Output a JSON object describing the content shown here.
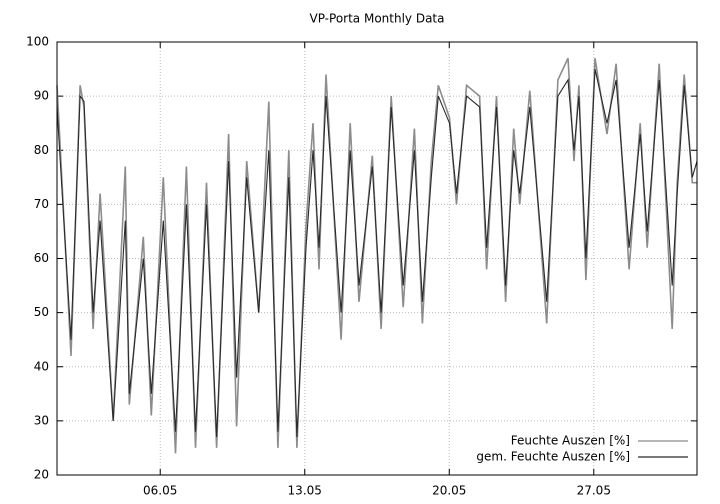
{
  "chart_data": {
    "type": "line",
    "title": "VP-Porta Monthly Data",
    "x": [
      1.0,
      1.68,
      2.12,
      2.31,
      2.75,
      3.09,
      3.72,
      4.31,
      4.5,
      5.18,
      5.57,
      6.15,
      6.74,
      7.27,
      7.71,
      8.24,
      8.73,
      9.31,
      9.7,
      10.19,
      10.77,
      11.26,
      11.7,
      12.23,
      12.62,
      13.06,
      13.4,
      13.69,
      14.03,
      14.76,
      15.2,
      15.63,
      16.27,
      16.7,
      17.19,
      17.77,
      18.31,
      18.7,
      19.13,
      19.47,
      20.01,
      20.35,
      20.84,
      21.47,
      21.81,
      22.29,
      22.73,
      23.12,
      23.41,
      23.9,
      24.72,
      25.26,
      25.75,
      26.04,
      26.28,
      26.62,
      27.06,
      27.64,
      28.08,
      28.71,
      29.25,
      29.59,
      30.17,
      30.8,
      31.04,
      31.38,
      31.77,
      32.0
    ],
    "series": [
      {
        "name": "Feuchte Auszen [%]",
        "color": "#8c8c8c",
        "values": [
          92,
          42,
          92,
          88,
          47,
          72,
          30,
          77,
          33,
          64,
          31,
          75,
          24,
          77,
          25,
          74,
          25,
          83,
          29,
          78,
          50,
          89,
          25,
          80,
          25,
          66,
          85,
          58,
          94,
          45,
          85,
          52,
          79,
          47,
          90,
          51,
          84,
          48,
          78,
          92,
          86,
          70,
          92,
          90,
          58,
          90,
          52,
          84,
          70,
          91,
          48,
          93,
          97,
          78,
          92,
          56,
          97,
          83,
          96,
          58,
          85,
          62,
          96,
          47,
          74,
          94,
          74,
          74
        ]
      },
      {
        "name": "gem. Feuchte Auszen [%]",
        "color": "#2a2a2a",
        "values": [
          88,
          45,
          90,
          89,
          50,
          67,
          30,
          67,
          35,
          60,
          35,
          67,
          28,
          70,
          28,
          70,
          27,
          78,
          38,
          75,
          50,
          80,
          28,
          75,
          27,
          62,
          80,
          62,
          90,
          50,
          80,
          55,
          77,
          50,
          88,
          55,
          80,
          52,
          75,
          90,
          85,
          72,
          90,
          88,
          62,
          88,
          55,
          80,
          72,
          88,
          52,
          90,
          93,
          80,
          90,
          60,
          95,
          85,
          93,
          62,
          83,
          65,
          93,
          55,
          72,
          92,
          75,
          78
        ]
      }
    ],
    "xlim": [
      1,
      32
    ],
    "xticks": [
      {
        "value": 6,
        "label": "06.05"
      },
      {
        "value": 13,
        "label": "13.05"
      },
      {
        "value": 20,
        "label": "20.05"
      },
      {
        "value": 27,
        "label": "27.05"
      }
    ],
    "ylim": [
      20,
      100
    ],
    "yticks": [
      20,
      30,
      40,
      50,
      60,
      70,
      80,
      90,
      100
    ],
    "grid": true,
    "legend": "bottom-right"
  }
}
